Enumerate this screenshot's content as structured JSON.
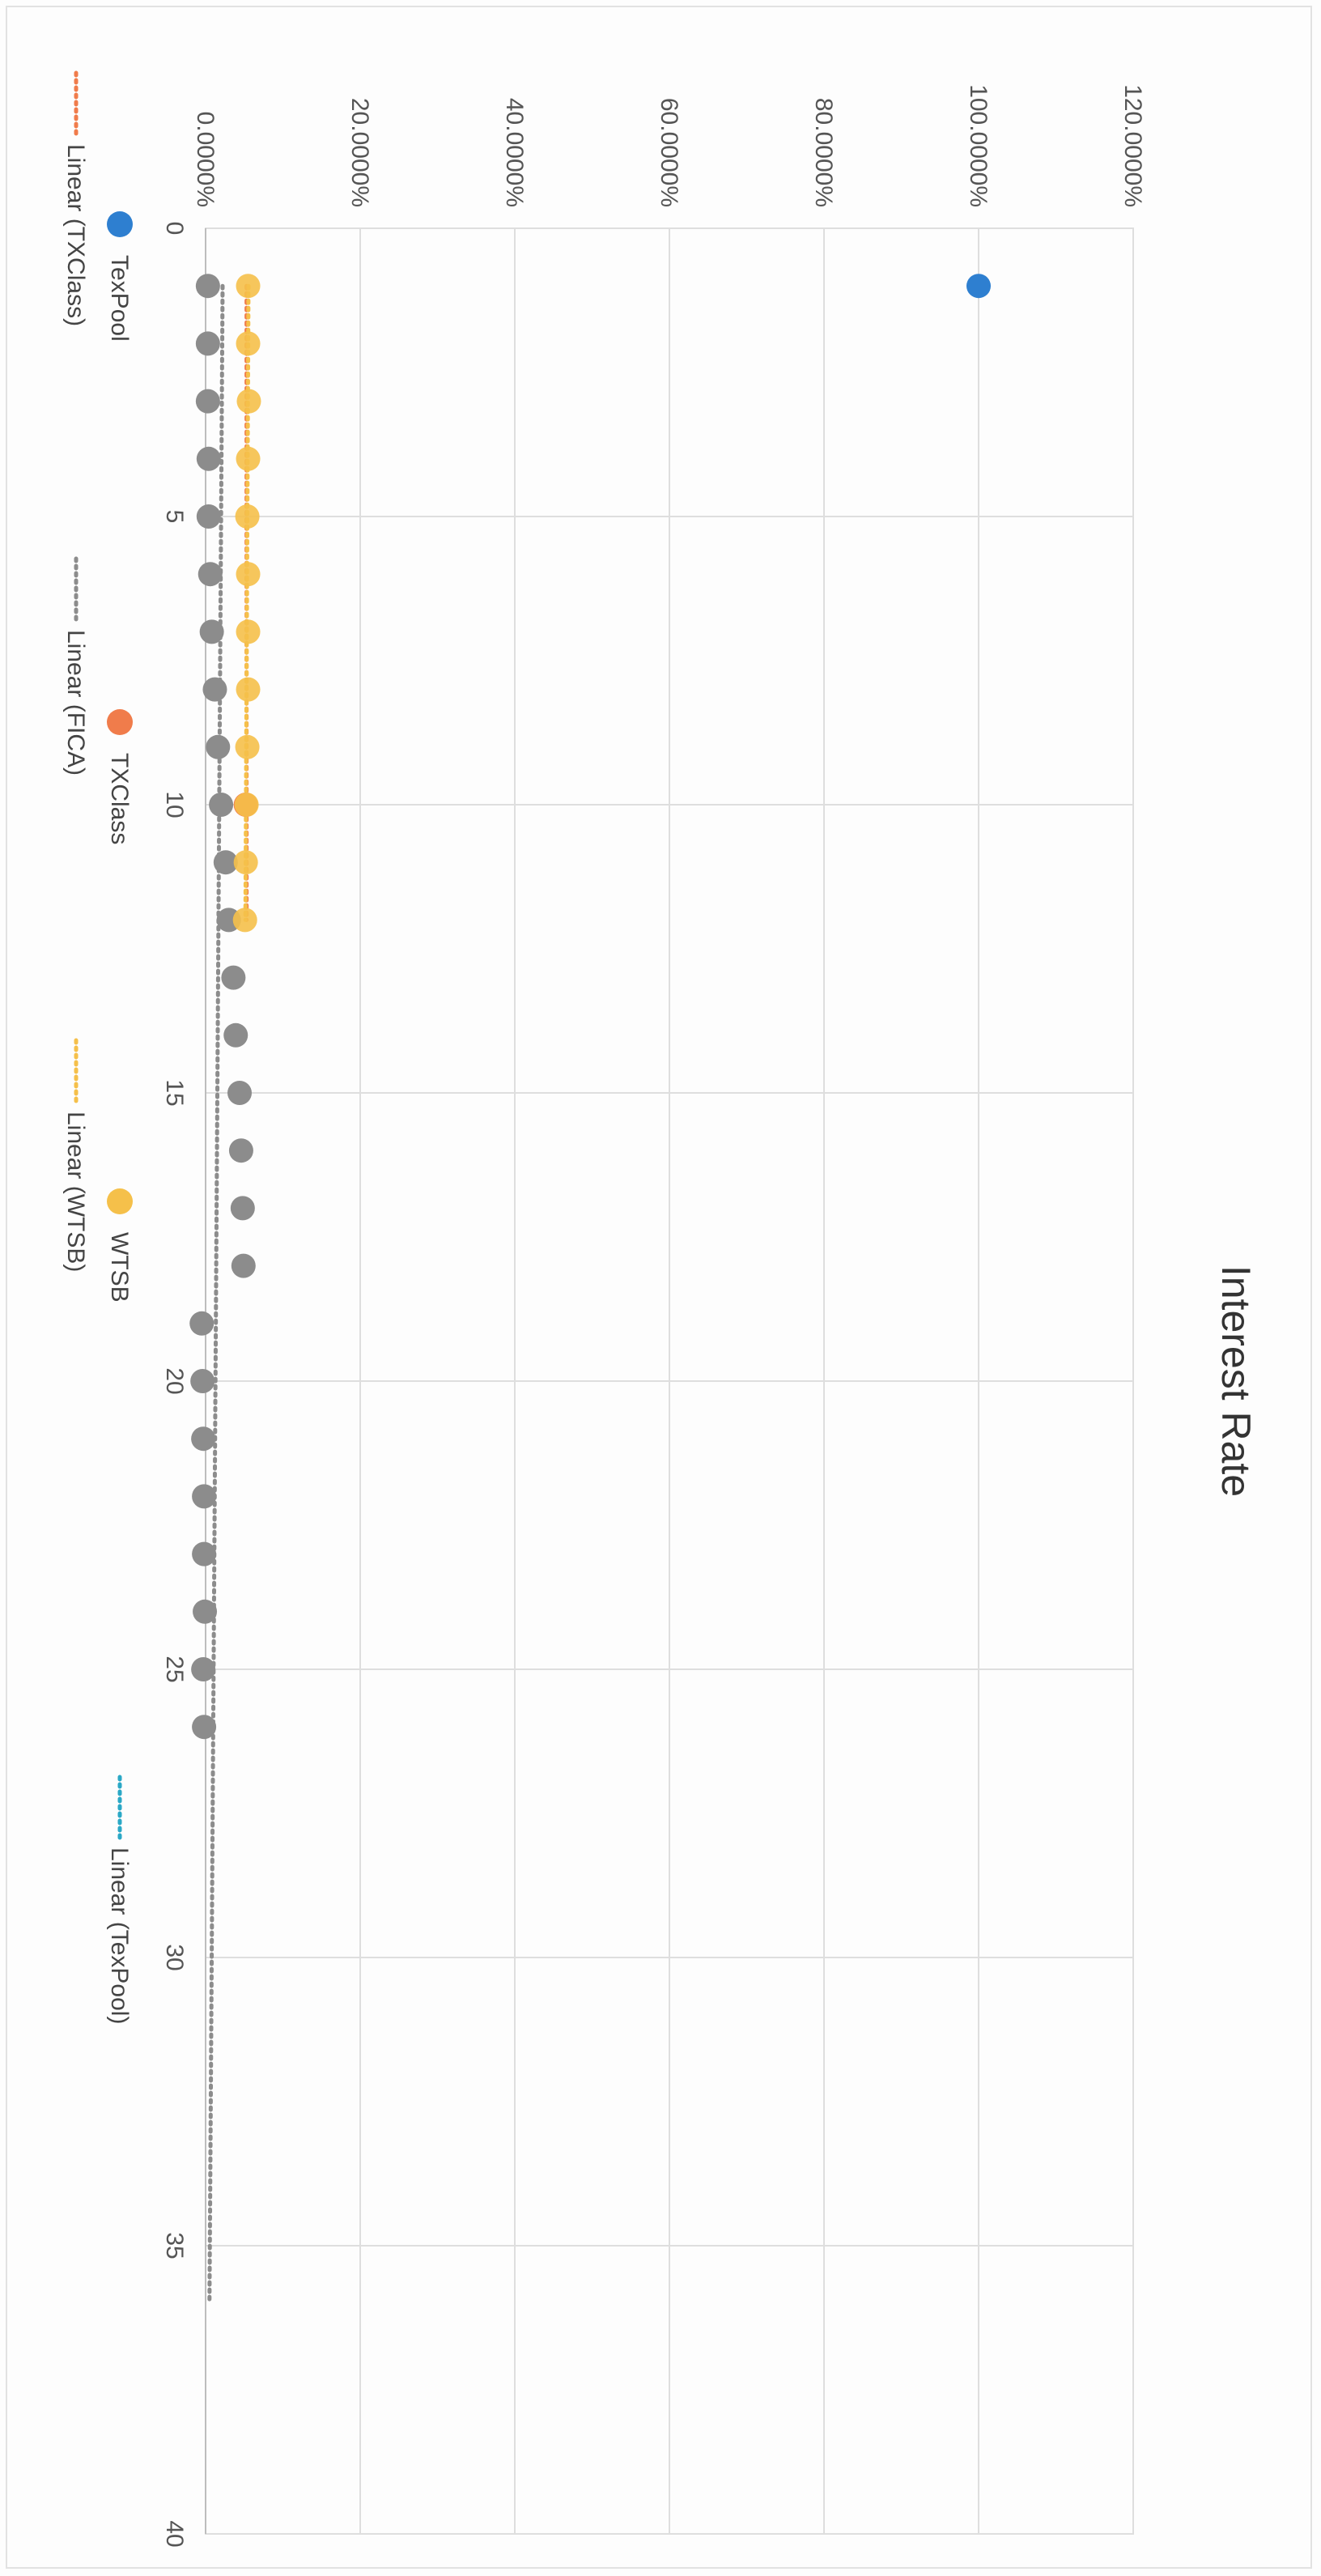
{
  "chart_data": {
    "type": "scatter",
    "title": "Interest Rate",
    "xlabel": "",
    "ylabel": "",
    "xlim": [
      0,
      40
    ],
    "ylim": [
      0,
      120
    ],
    "x_ticks": [
      "0",
      "5",
      "10",
      "15",
      "20",
      "25",
      "30",
      "35",
      "40"
    ],
    "y_ticks": [
      "0.0000%",
      "20.0000%",
      "40.0000%",
      "60.0000%",
      "80.0000%",
      "100.0000%",
      "120.0000%"
    ],
    "grid": true,
    "legend_position": "bottom",
    "series": [
      {
        "name": "TexPool",
        "color": "#2E7FD0",
        "x": [
          1
        ],
        "y": [
          100
        ]
      },
      {
        "name": "TXClass",
        "color": "#F07C4B",
        "x": [
          10
        ],
        "y": [
          5.2
        ]
      },
      {
        "name": "FICA",
        "color": "#8C8C8C",
        "x": [
          1,
          2,
          3,
          4,
          5,
          6,
          7,
          8,
          9,
          10,
          11,
          12,
          13,
          14,
          15,
          16,
          17,
          18,
          19,
          20,
          21,
          22,
          23,
          24,
          25,
          26
        ],
        "y": [
          0.3,
          0.3,
          0.3,
          0.4,
          0.4,
          0.6,
          0.8,
          1.2,
          1.6,
          2.0,
          2.6,
          3.0,
          3.6,
          3.9,
          4.4,
          4.6,
          4.8,
          4.9,
          -0.5,
          -0.4,
          -0.3,
          -0.2,
          -0.2,
          -0.1,
          -0.3,
          -0.2
        ]
      },
      {
        "name": "WTSB",
        "color": "#F5C04A",
        "x": [
          1,
          2,
          3,
          4,
          5,
          6,
          7,
          8,
          9,
          10,
          11,
          12
        ],
        "y": [
          5.5,
          5.5,
          5.6,
          5.5,
          5.4,
          5.5,
          5.5,
          5.5,
          5.4,
          5.3,
          5.2,
          5.1
        ]
      }
    ],
    "trendlines": [
      {
        "name": "Linear (TXClass)",
        "color": "#F07C4B",
        "series": "TXClass",
        "x": [
          1,
          12
        ],
        "y": [
          5.3,
          5.3
        ]
      },
      {
        "name": "Linear (FICA)",
        "color": "#8C8C8C",
        "series": "FICA",
        "x": [
          1,
          36
        ],
        "y": [
          2.2,
          0.5
        ]
      },
      {
        "name": "Linear (WTSB)",
        "color": "#F5C04A",
        "series": "WTSB",
        "x": [
          1,
          12
        ],
        "y": [
          5.55,
          5.15
        ]
      },
      {
        "name": "Linear (TexPool)",
        "color": "#2AA8C6",
        "series": "TexPool",
        "x": [],
        "y": []
      }
    ],
    "legend": [
      {
        "label": "TexPool",
        "kind": "marker",
        "color": "#2E7FD0"
      },
      {
        "label": "TXClass",
        "kind": "marker",
        "color": "#F07C4B"
      },
      {
        "label": "WTSB",
        "kind": "marker",
        "color": "#F5C04A"
      },
      {
        "label": "Linear (TexPool)",
        "kind": "line",
        "color": "#2AA8C6"
      },
      {
        "label": "Linear (TXClass)",
        "kind": "line",
        "color": "#F07C4B"
      },
      {
        "label": "Linear (FICA)",
        "kind": "line",
        "color": "#8C8C8C"
      },
      {
        "label": "Linear (WTSB)",
        "kind": "line",
        "color": "#F5C04A"
      }
    ]
  }
}
